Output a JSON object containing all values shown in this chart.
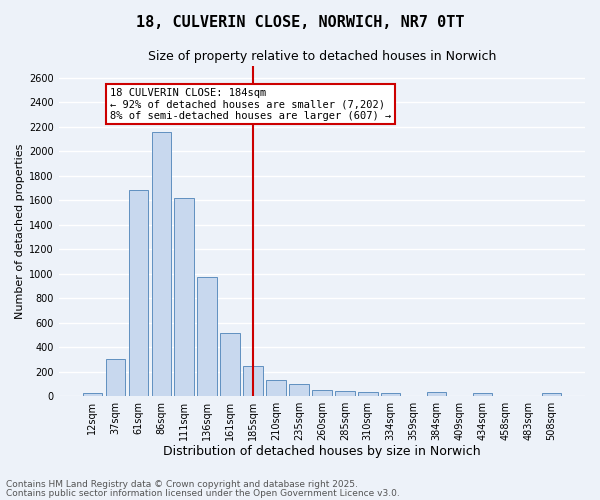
{
  "title": "18, CULVERIN CLOSE, NORWICH, NR7 0TT",
  "subtitle": "Size of property relative to detached houses in Norwich",
  "xlabel": "Distribution of detached houses by size in Norwich",
  "ylabel": "Number of detached properties",
  "categories": [
    "12sqm",
    "37sqm",
    "61sqm",
    "86sqm",
    "111sqm",
    "136sqm",
    "161sqm",
    "185sqm",
    "210sqm",
    "235sqm",
    "260sqm",
    "285sqm",
    "310sqm",
    "334sqm",
    "359sqm",
    "384sqm",
    "409sqm",
    "434sqm",
    "458sqm",
    "483sqm",
    "508sqm"
  ],
  "values": [
    25,
    305,
    1680,
    2160,
    1615,
    975,
    515,
    248,
    135,
    100,
    50,
    40,
    30,
    25,
    0,
    30,
    0,
    25,
    0,
    0,
    25
  ],
  "bar_color": "#c8d8ee",
  "bar_edge_color": "#6090c0",
  "vline_x_index": 7,
  "vline_color": "#cc0000",
  "annotation_text": "18 CULVERIN CLOSE: 184sqm\n← 92% of detached houses are smaller (7,202)\n8% of semi-detached houses are larger (607) →",
  "annotation_box_color": "#ffffff",
  "annotation_box_edge_color": "#cc0000",
  "ylim": [
    0,
    2700
  ],
  "yticks": [
    0,
    200,
    400,
    600,
    800,
    1000,
    1200,
    1400,
    1600,
    1800,
    2000,
    2200,
    2400,
    2600
  ],
  "background_color": "#edf2f9",
  "grid_color": "#ffffff",
  "footer_line1": "Contains HM Land Registry data © Crown copyright and database right 2025.",
  "footer_line2": "Contains public sector information licensed under the Open Government Licence v3.0.",
  "title_fontsize": 11,
  "subtitle_fontsize": 9,
  "xlabel_fontsize": 9,
  "ylabel_fontsize": 8,
  "tick_fontsize": 7,
  "footer_fontsize": 6.5,
  "annotation_fontsize": 7.5
}
